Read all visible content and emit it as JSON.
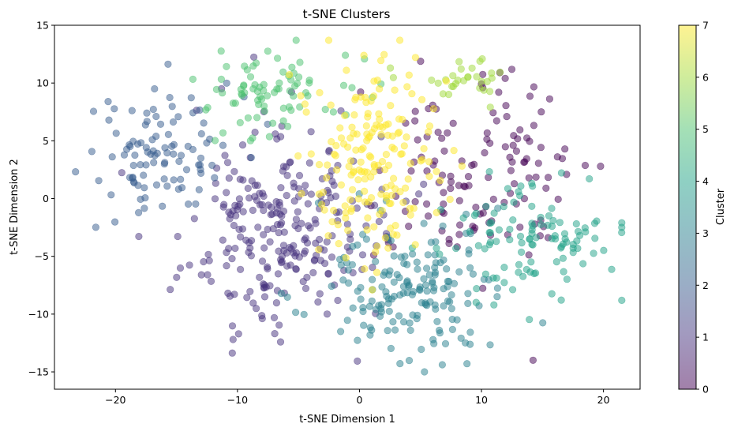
{
  "chart_data": {
    "type": "scatter",
    "title": "t-SNE Clusters",
    "xlabel": "t-SNE Dimension 1",
    "ylabel": "t-SNE Dimension 2",
    "xlim": [
      -25,
      23
    ],
    "ylim": [
      -16.5,
      15
    ],
    "xticks": [
      -20,
      -10,
      0,
      10,
      20
    ],
    "yticks": [
      -15,
      -10,
      -5,
      0,
      5,
      10,
      15
    ],
    "grid": false,
    "colormap": "viridis",
    "marker_alpha": 0.5,
    "colorbar": {
      "label": "Cluster",
      "min": 0,
      "max": 7,
      "ticks": [
        0,
        1,
        2,
        3,
        4,
        5,
        6,
        7
      ]
    },
    "clusters": [
      {
        "id": 0,
        "color": "#440154",
        "center": [
          10,
          2
        ],
        "spread": [
          4.5,
          4.5
        ],
        "count": 130
      },
      {
        "id": 1,
        "color": "#46327e",
        "center": [
          -6.5,
          -3
        ],
        "spread": [
          4.0,
          4.2
        ],
        "count": 260
      },
      {
        "id": 2,
        "color": "#365c8d",
        "center": [
          -16.5,
          3.5
        ],
        "spread": [
          2.8,
          3.2
        ],
        "count": 100
      },
      {
        "id": 3,
        "color": "#277f8e",
        "center": [
          4.5,
          -8
        ],
        "spread": [
          4.0,
          3.2
        ],
        "count": 170
      },
      {
        "id": 4,
        "color": "#1fa187",
        "center": [
          13.5,
          -4
        ],
        "spread": [
          3.5,
          2.5
        ],
        "count": 110
      },
      {
        "id": 5,
        "color": "#4ac16d",
        "center": [
          -7,
          9
        ],
        "spread": [
          3.0,
          2.2
        ],
        "count": 80
      },
      {
        "id": 6,
        "color": "#a0da39",
        "center": [
          8.5,
          10.5
        ],
        "spread": [
          2.0,
          1.0
        ],
        "count": 30
      },
      {
        "id": 7,
        "color": "#fde725",
        "center": [
          1,
          3.5
        ],
        "spread": [
          2.8,
          4.0
        ],
        "count": 180
      }
    ]
  }
}
